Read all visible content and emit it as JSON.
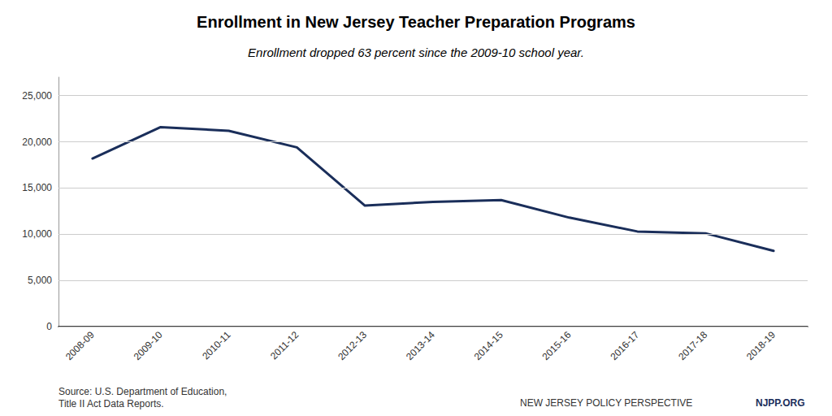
{
  "chart_data": {
    "type": "line",
    "title": "Enrollment in New Jersey Teacher Preparation Programs",
    "subtitle": "Enrollment dropped 63 percent since the 2009-10 school year.",
    "categories": [
      "2008-09",
      "2009-10",
      "2010-11",
      "2011-12",
      "2012-13",
      "2013-14",
      "2014-15",
      "2015-16",
      "2016-17",
      "2017-18",
      "2018-19"
    ],
    "values": [
      18200,
      21600,
      21200,
      19400,
      13100,
      13500,
      13700,
      11800,
      10300,
      10100,
      8200
    ],
    "color": "#1a2e5a",
    "ylim": [
      0,
      27000
    ],
    "yticks": [
      0,
      {
        "value": 5000,
        "label": "5,000"
      },
      {
        "value": 10000,
        "label": "10,000"
      },
      {
        "value": 15000,
        "label": "15,000"
      },
      {
        "value": 20000,
        "label": "20,000"
      },
      {
        "value": 25000,
        "label": "25,000"
      }
    ],
    "grid": true,
    "annotations": [
      "Source: U.S. Department of Education,\nTitle II Act Data Reports.",
      "NEW JERSEY POLICY PERSPECTIVE",
      "NJPP.ORG"
    ]
  }
}
